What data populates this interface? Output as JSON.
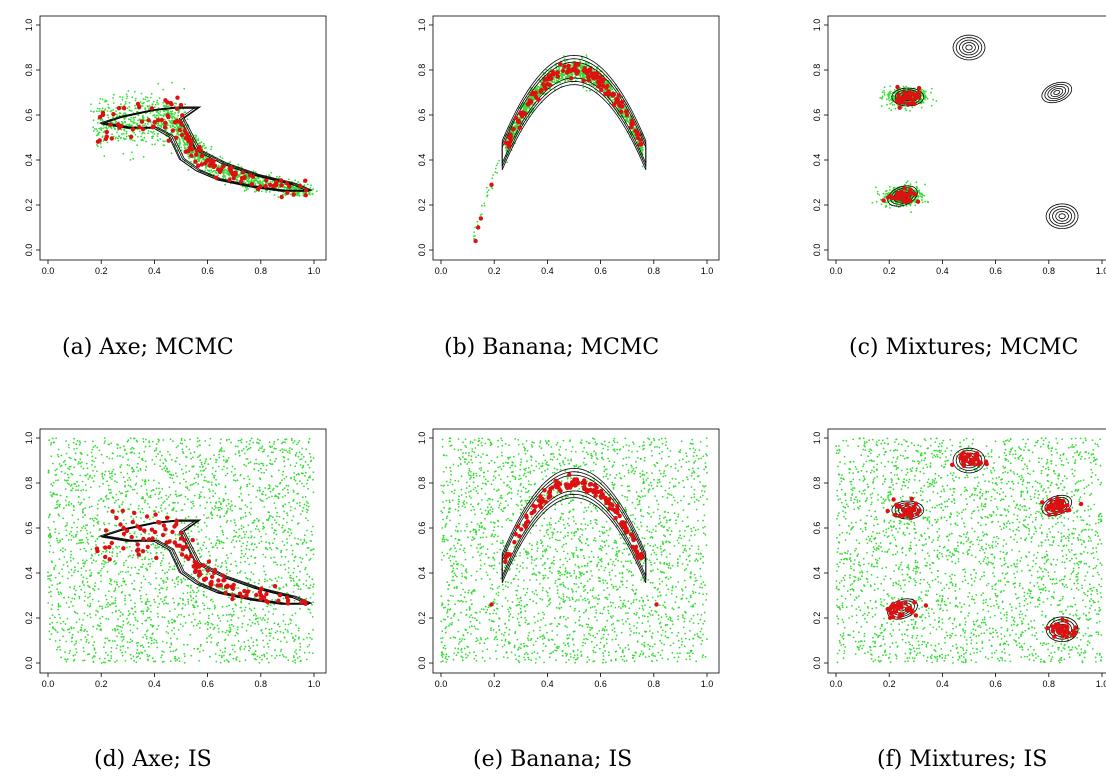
{
  "colors": {
    "points": "#33dd33",
    "selected": "#dd1111",
    "contour": "#000000"
  },
  "chart_data": [
    {
      "id": "a",
      "type": "scatter",
      "caption": "(a) Axe; MCMC",
      "xlim": [
        0,
        1
      ],
      "ylim": [
        0,
        1
      ],
      "xticks": [
        "0.0",
        "0.2",
        "0.4",
        "0.6",
        "0.8",
        "1.0"
      ],
      "yticks": [
        "0.0",
        "0.2",
        "0.4",
        "0.6",
        "0.8",
        "1.0"
      ],
      "sampling": "MCMC",
      "target": "axe",
      "grid": false
    },
    {
      "id": "b",
      "type": "scatter",
      "caption": "(b) Banana; MCMC",
      "xlim": [
        0,
        1
      ],
      "ylim": [
        0,
        1
      ],
      "xticks": [
        "0.0",
        "0.2",
        "0.4",
        "0.6",
        "0.8",
        "1.0"
      ],
      "yticks": [
        "0.0",
        "0.2",
        "0.4",
        "0.6",
        "0.8",
        "1.0"
      ],
      "sampling": "MCMC",
      "target": "banana",
      "grid": false
    },
    {
      "id": "c",
      "type": "scatter",
      "caption": "(c) Mixtures; MCMC",
      "xlim": [
        0,
        1
      ],
      "ylim": [
        0,
        1
      ],
      "xticks": [
        "0.0",
        "0.2",
        "0.4",
        "0.6",
        "0.8",
        "1.0"
      ],
      "yticks": [
        "0.0",
        "0.2",
        "0.4",
        "0.6",
        "0.8",
        "1.0"
      ],
      "sampling": "MCMC",
      "target": "mixtures",
      "grid": false,
      "mixture_centers": [
        [
          0.25,
          0.24
        ],
        [
          0.27,
          0.68
        ],
        [
          0.5,
          0.9
        ],
        [
          0.83,
          0.7
        ],
        [
          0.85,
          0.15
        ]
      ],
      "mcmc_visited_modes": [
        0,
        1
      ]
    },
    {
      "id": "d",
      "type": "scatter",
      "caption": "(d) Axe; IS",
      "xlim": [
        0,
        1
      ],
      "ylim": [
        0,
        1
      ],
      "xticks": [
        "0.0",
        "0.2",
        "0.4",
        "0.6",
        "0.8",
        "1.0"
      ],
      "yticks": [
        "0.0",
        "0.2",
        "0.4",
        "0.6",
        "0.8",
        "1.0"
      ],
      "sampling": "IS",
      "target": "axe",
      "grid": false
    },
    {
      "id": "e",
      "type": "scatter",
      "caption": "(e) Banana; IS",
      "xlim": [
        0,
        1
      ],
      "ylim": [
        0,
        1
      ],
      "xticks": [
        "0.0",
        "0.2",
        "0.4",
        "0.6",
        "0.8",
        "1.0"
      ],
      "yticks": [
        "0.0",
        "0.2",
        "0.4",
        "0.6",
        "0.8",
        "1.0"
      ],
      "sampling": "IS",
      "target": "banana",
      "grid": false
    },
    {
      "id": "f",
      "type": "scatter",
      "caption": "(f) Mixtures; IS",
      "xlim": [
        0,
        1
      ],
      "ylim": [
        0,
        1
      ],
      "xticks": [
        "0.0",
        "0.2",
        "0.4",
        "0.6",
        "0.8",
        "1.0"
      ],
      "yticks": [
        "0.0",
        "0.2",
        "0.4",
        "0.6",
        "0.8",
        "1.0"
      ],
      "sampling": "IS",
      "target": "mixtures",
      "grid": false,
      "mixture_centers": [
        [
          0.25,
          0.24
        ],
        [
          0.27,
          0.68
        ],
        [
          0.5,
          0.9
        ],
        [
          0.83,
          0.7
        ],
        [
          0.85,
          0.15
        ]
      ]
    }
  ]
}
